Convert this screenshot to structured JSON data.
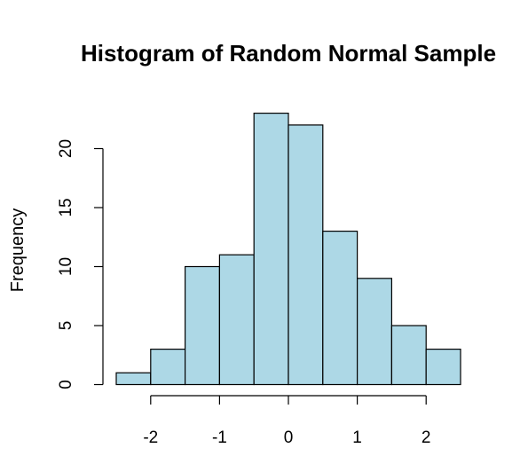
{
  "chart_data": {
    "type": "bar",
    "subtype": "histogram",
    "title": "Histogram of Random Normal Sample",
    "xlabel": "",
    "ylabel": "Frequency",
    "bin_edges": [
      -2.5,
      -2.0,
      -1.5,
      -1.0,
      -0.5,
      0.0,
      0.5,
      1.0,
      1.5,
      2.0,
      2.5
    ],
    "values": [
      1,
      3,
      10,
      11,
      23,
      22,
      13,
      9,
      5,
      3
    ],
    "x_ticks": [
      -2,
      -1,
      0,
      1,
      2
    ],
    "x_tick_labels": [
      "-2",
      "-1",
      "0",
      "1",
      "2"
    ],
    "y_ticks": [
      0,
      5,
      10,
      15,
      20
    ],
    "y_tick_labels": [
      "0",
      "5",
      "10",
      "15",
      "20"
    ],
    "xlim": [
      -2.5,
      2.5
    ],
    "ylim": [
      0,
      23
    ],
    "grid": false,
    "legend": "none",
    "bar_color": "#add8e6",
    "edge_color": "#000000"
  }
}
